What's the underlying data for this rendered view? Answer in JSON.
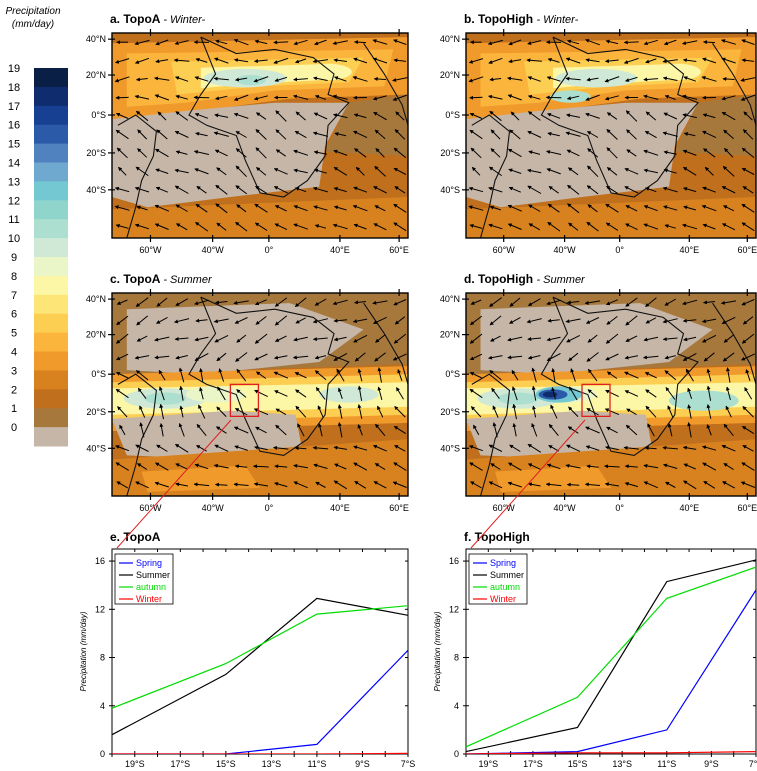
{
  "colorbar": {
    "label_line1": "Precipitation",
    "label_line2": "(mm/day)",
    "levels": [
      "19",
      "18",
      "17",
      "16",
      "15",
      "14",
      "13",
      "12",
      "11",
      "10",
      "9",
      "8",
      "7",
      "6",
      "5",
      "4",
      "3",
      "2",
      "1",
      "0"
    ],
    "colors": [
      "#0a1f45",
      "#0f2d6e",
      "#173f92",
      "#2a5aa8",
      "#4f82be",
      "#6fa9cf",
      "#74c8d2",
      "#8fd5cc",
      "#acdfcf",
      "#cfe9d6",
      "#eaf5c8",
      "#fbf7a6",
      "#fde677",
      "#fccf52",
      "#fbb53d",
      "#f19a2c",
      "#d8821f",
      "#c06f1c",
      "#a7783c",
      "#c6b6a7"
    ]
  },
  "maps": [
    {
      "letter": "a.",
      "model": "TopoA",
      "season": "- Winter-",
      "inset": false,
      "center_blob": true
    },
    {
      "letter": "b.",
      "model": "TopoHigh",
      "season": "- Winter-",
      "inset": false,
      "center_blob": false
    },
    {
      "letter": "c.",
      "model": "TopoA",
      "season": "- Summer",
      "inset": true,
      "center_blob": false
    },
    {
      "letter": "d.",
      "model": "TopoHigh",
      "season": "- Summer",
      "inset": true,
      "center_blob": true
    }
  ],
  "map_axes": {
    "lat_labels": [
      "40°N",
      "20°N",
      "0°S",
      "20°S",
      "40°S"
    ],
    "lon_labels": [
      "60°W",
      "40°W",
      "0°",
      "40°E",
      "60°E"
    ]
  },
  "chart_data": [
    {
      "type": "line",
      "letter": "e.",
      "title": "TopoA",
      "ylabel": "Precipitation  (mm/day)",
      "xlabel": "",
      "x_ticks": [
        "19°S",
        "17°S",
        "15°S",
        "13°S",
        "11°S",
        "9°S",
        "7°S"
      ],
      "x_domain": [
        20,
        7
      ],
      "ylim": [
        0,
        17
      ],
      "y_ticks": [
        0,
        4,
        8,
        12,
        16
      ],
      "legend_position": "top-left",
      "series": [
        {
          "name": "Spring",
          "color": "#0000ff",
          "points": [
            [
              20,
              0
            ],
            [
              15,
              0
            ],
            [
              11,
              0.8
            ],
            [
              7,
              8.6
            ]
          ]
        },
        {
          "name": "Summer",
          "color": "#000000",
          "points": [
            [
              20,
              1.6
            ],
            [
              15,
              6.6
            ],
            [
              11,
              12.9
            ],
            [
              7,
              11.5
            ]
          ]
        },
        {
          "name": "autumn",
          "color": "#00dd00",
          "points": [
            [
              20,
              3.8
            ],
            [
              15,
              7.5
            ],
            [
              11,
              11.6
            ],
            [
              7,
              12.3
            ]
          ]
        },
        {
          "name": "Winter",
          "color": "#ff0000",
          "points": [
            [
              20,
              0
            ],
            [
              15,
              0
            ],
            [
              11,
              0
            ],
            [
              7,
              0.05
            ]
          ]
        }
      ]
    },
    {
      "type": "line",
      "letter": "f.",
      "title": "TopoHigh",
      "ylabel": "Precipitation  (mm/day)",
      "xlabel": "",
      "x_ticks": [
        "19°S",
        "17°S",
        "15°S",
        "13°S",
        "11°S",
        "9°S",
        "7°S"
      ],
      "x_domain": [
        20,
        7
      ],
      "ylim": [
        0,
        17
      ],
      "y_ticks": [
        0,
        4,
        8,
        12,
        16
      ],
      "legend_position": "top-left",
      "series": [
        {
          "name": "Spring",
          "color": "#0000ff",
          "points": [
            [
              20,
              0
            ],
            [
              15,
              0.2
            ],
            [
              11,
              2.0
            ],
            [
              7,
              13.6
            ]
          ]
        },
        {
          "name": "Summer",
          "color": "#000000",
          "points": [
            [
              20,
              0.2
            ],
            [
              15,
              2.2
            ],
            [
              11,
              14.3
            ],
            [
              7,
              16.1
            ]
          ]
        },
        {
          "name": "autumn",
          "color": "#00dd00",
          "points": [
            [
              20,
              0.6
            ],
            [
              15,
              4.7
            ],
            [
              11,
              12.9
            ],
            [
              7,
              15.5
            ]
          ]
        },
        {
          "name": "Winter",
          "color": "#ff0000",
          "points": [
            [
              20,
              0
            ],
            [
              15,
              0.1
            ],
            [
              11,
              0.1
            ],
            [
              7,
              0.2
            ]
          ]
        }
      ]
    }
  ]
}
